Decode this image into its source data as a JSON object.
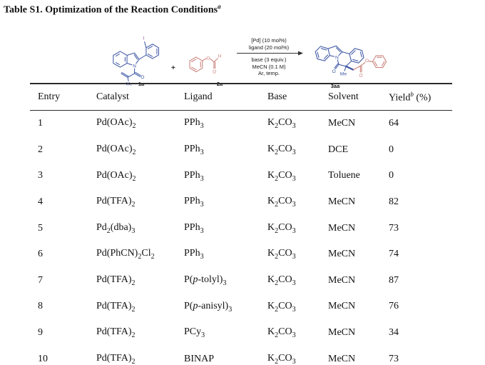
{
  "page": {
    "title": "Table S1. Optimization of the Reaction Conditions^*a*^"
  },
  "scheme": {
    "plus": "+",
    "arrow_conditions_above": [
      "[Pd] (10 mol%)",
      "ligand (20 mol%)"
    ],
    "arrow_conditions_below": [
      "base (3 equiv.)",
      "MeCN (0.1 M)",
      "Ar, temp."
    ],
    "mol_1a": {
      "label": "1a",
      "atoms": {
        "I": "I",
        "N": "N",
        "O": "O",
        "Me": "Me"
      }
    },
    "mol_2a": {
      "label": "2a",
      "atoms": {
        "O_ester": "O",
        "O_carbonyl": "O",
        "H": "H"
      }
    },
    "mol_3aa": {
      "label": "3aa",
      "atoms": {
        "N": "N",
        "O_lactam": "O",
        "Me": "Me",
        "O_carbonyl": "O",
        "O_ester": "O"
      }
    },
    "colors": {
      "substrate_blue": "#3b55a3",
      "ester_red": "#c97f78",
      "iodine_purple": "#8d4b9c",
      "condition_text": "#1a1a1a"
    }
  },
  "table": {
    "headers": [
      "Entry",
      "Catalyst",
      "Ligand",
      "Base",
      "Solvent",
      "Yield^*b*^ (%)"
    ],
    "rows": [
      [
        "1",
        "Pd(OAc)~2~",
        "PPh~3~",
        "K~2~CO~3~",
        "MeCN",
        "64"
      ],
      [
        "2",
        "Pd(OAc)~2~",
        "PPh~3~",
        "K~2~CO~3~",
        "DCE",
        "0"
      ],
      [
        "3",
        "Pd(OAc)~2~",
        "PPh~3~",
        "K~2~CO~3~",
        "Toluene",
        "0"
      ],
      [
        "4",
        "Pd(TFA)~2~",
        "PPh~3~",
        "K~2~CO~3~",
        "MeCN",
        "82"
      ],
      [
        "5",
        "Pd~2~(dba)~3~",
        "PPh~3~",
        "K~2~CO~3~",
        "MeCN",
        "73"
      ],
      [
        "6",
        "Pd(PhCN)~2~Cl~2~",
        "PPh~3~",
        "K~2~CO~3~",
        "MeCN",
        "74"
      ],
      [
        "7",
        "Pd(TFA)~2~",
        "P(*p*-tolyl)~3~",
        "K~2~CO~3~",
        "MeCN",
        "87"
      ],
      [
        "8",
        "Pd(TFA)~2~",
        "P(*p*-anisyl)~3~",
        "K~2~CO~3~",
        "MeCN",
        "76"
      ],
      [
        "9",
        "Pd(TFA)~2~",
        "PCy~3~",
        "K~2~CO~3~",
        "MeCN",
        "34"
      ],
      [
        "10",
        "Pd(TFA)~2~",
        "BINAP",
        "K~2~CO~3~",
        "MeCN",
        "73"
      ]
    ]
  }
}
